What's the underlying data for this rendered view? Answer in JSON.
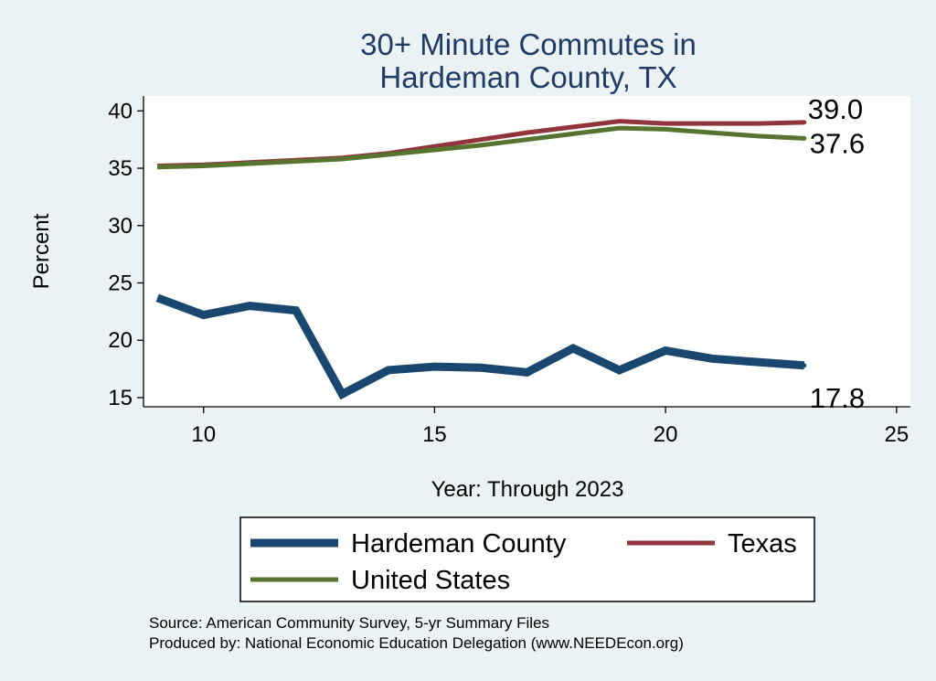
{
  "chart_data": {
    "type": "line",
    "title": [
      "30+ Minute Commutes in",
      "Hardeman County, TX"
    ],
    "xlabel": "Year: Through 2023",
    "ylabel": "Percent",
    "xlim": [
      8.7,
      25.3
    ],
    "ylim": [
      14.2,
      41.3
    ],
    "xticks": [
      10,
      15,
      20,
      25
    ],
    "yticks": [
      15,
      20,
      25,
      30,
      35,
      40
    ],
    "grid": true,
    "legend_position": "bottom",
    "x": [
      9,
      10,
      11,
      12,
      13,
      14,
      15,
      16,
      17,
      18,
      19,
      20,
      21,
      22,
      23
    ],
    "series": [
      {
        "name": "Hardeman County",
        "color": "#1a476f",
        "values": [
          23.7,
          22.2,
          23.0,
          22.6,
          15.3,
          17.4,
          17.7,
          17.6,
          17.2,
          19.3,
          17.4,
          19.1,
          18.4,
          18.1,
          17.8
        ],
        "end_label": "17.8"
      },
      {
        "name": "Texas",
        "color": "#90353b",
        "values": [
          35.2,
          35.3,
          35.5,
          35.7,
          35.9,
          36.3,
          36.9,
          37.5,
          38.1,
          38.6,
          39.1,
          38.9,
          38.9,
          38.9,
          39.0
        ],
        "end_label": "39.0"
      },
      {
        "name": "United States",
        "color": "#55752f",
        "values": [
          35.1,
          35.2,
          35.4,
          35.6,
          35.8,
          36.2,
          36.6,
          37.0,
          37.5,
          38.0,
          38.5,
          38.4,
          38.1,
          37.8,
          37.6
        ],
        "end_label": "37.6"
      }
    ]
  },
  "footer": {
    "source": "Source: American Community Survey, 5-yr Summary Files",
    "produced_by": "Produced by: National Economic Education Delegation (www.NEEDEcon.org)"
  }
}
